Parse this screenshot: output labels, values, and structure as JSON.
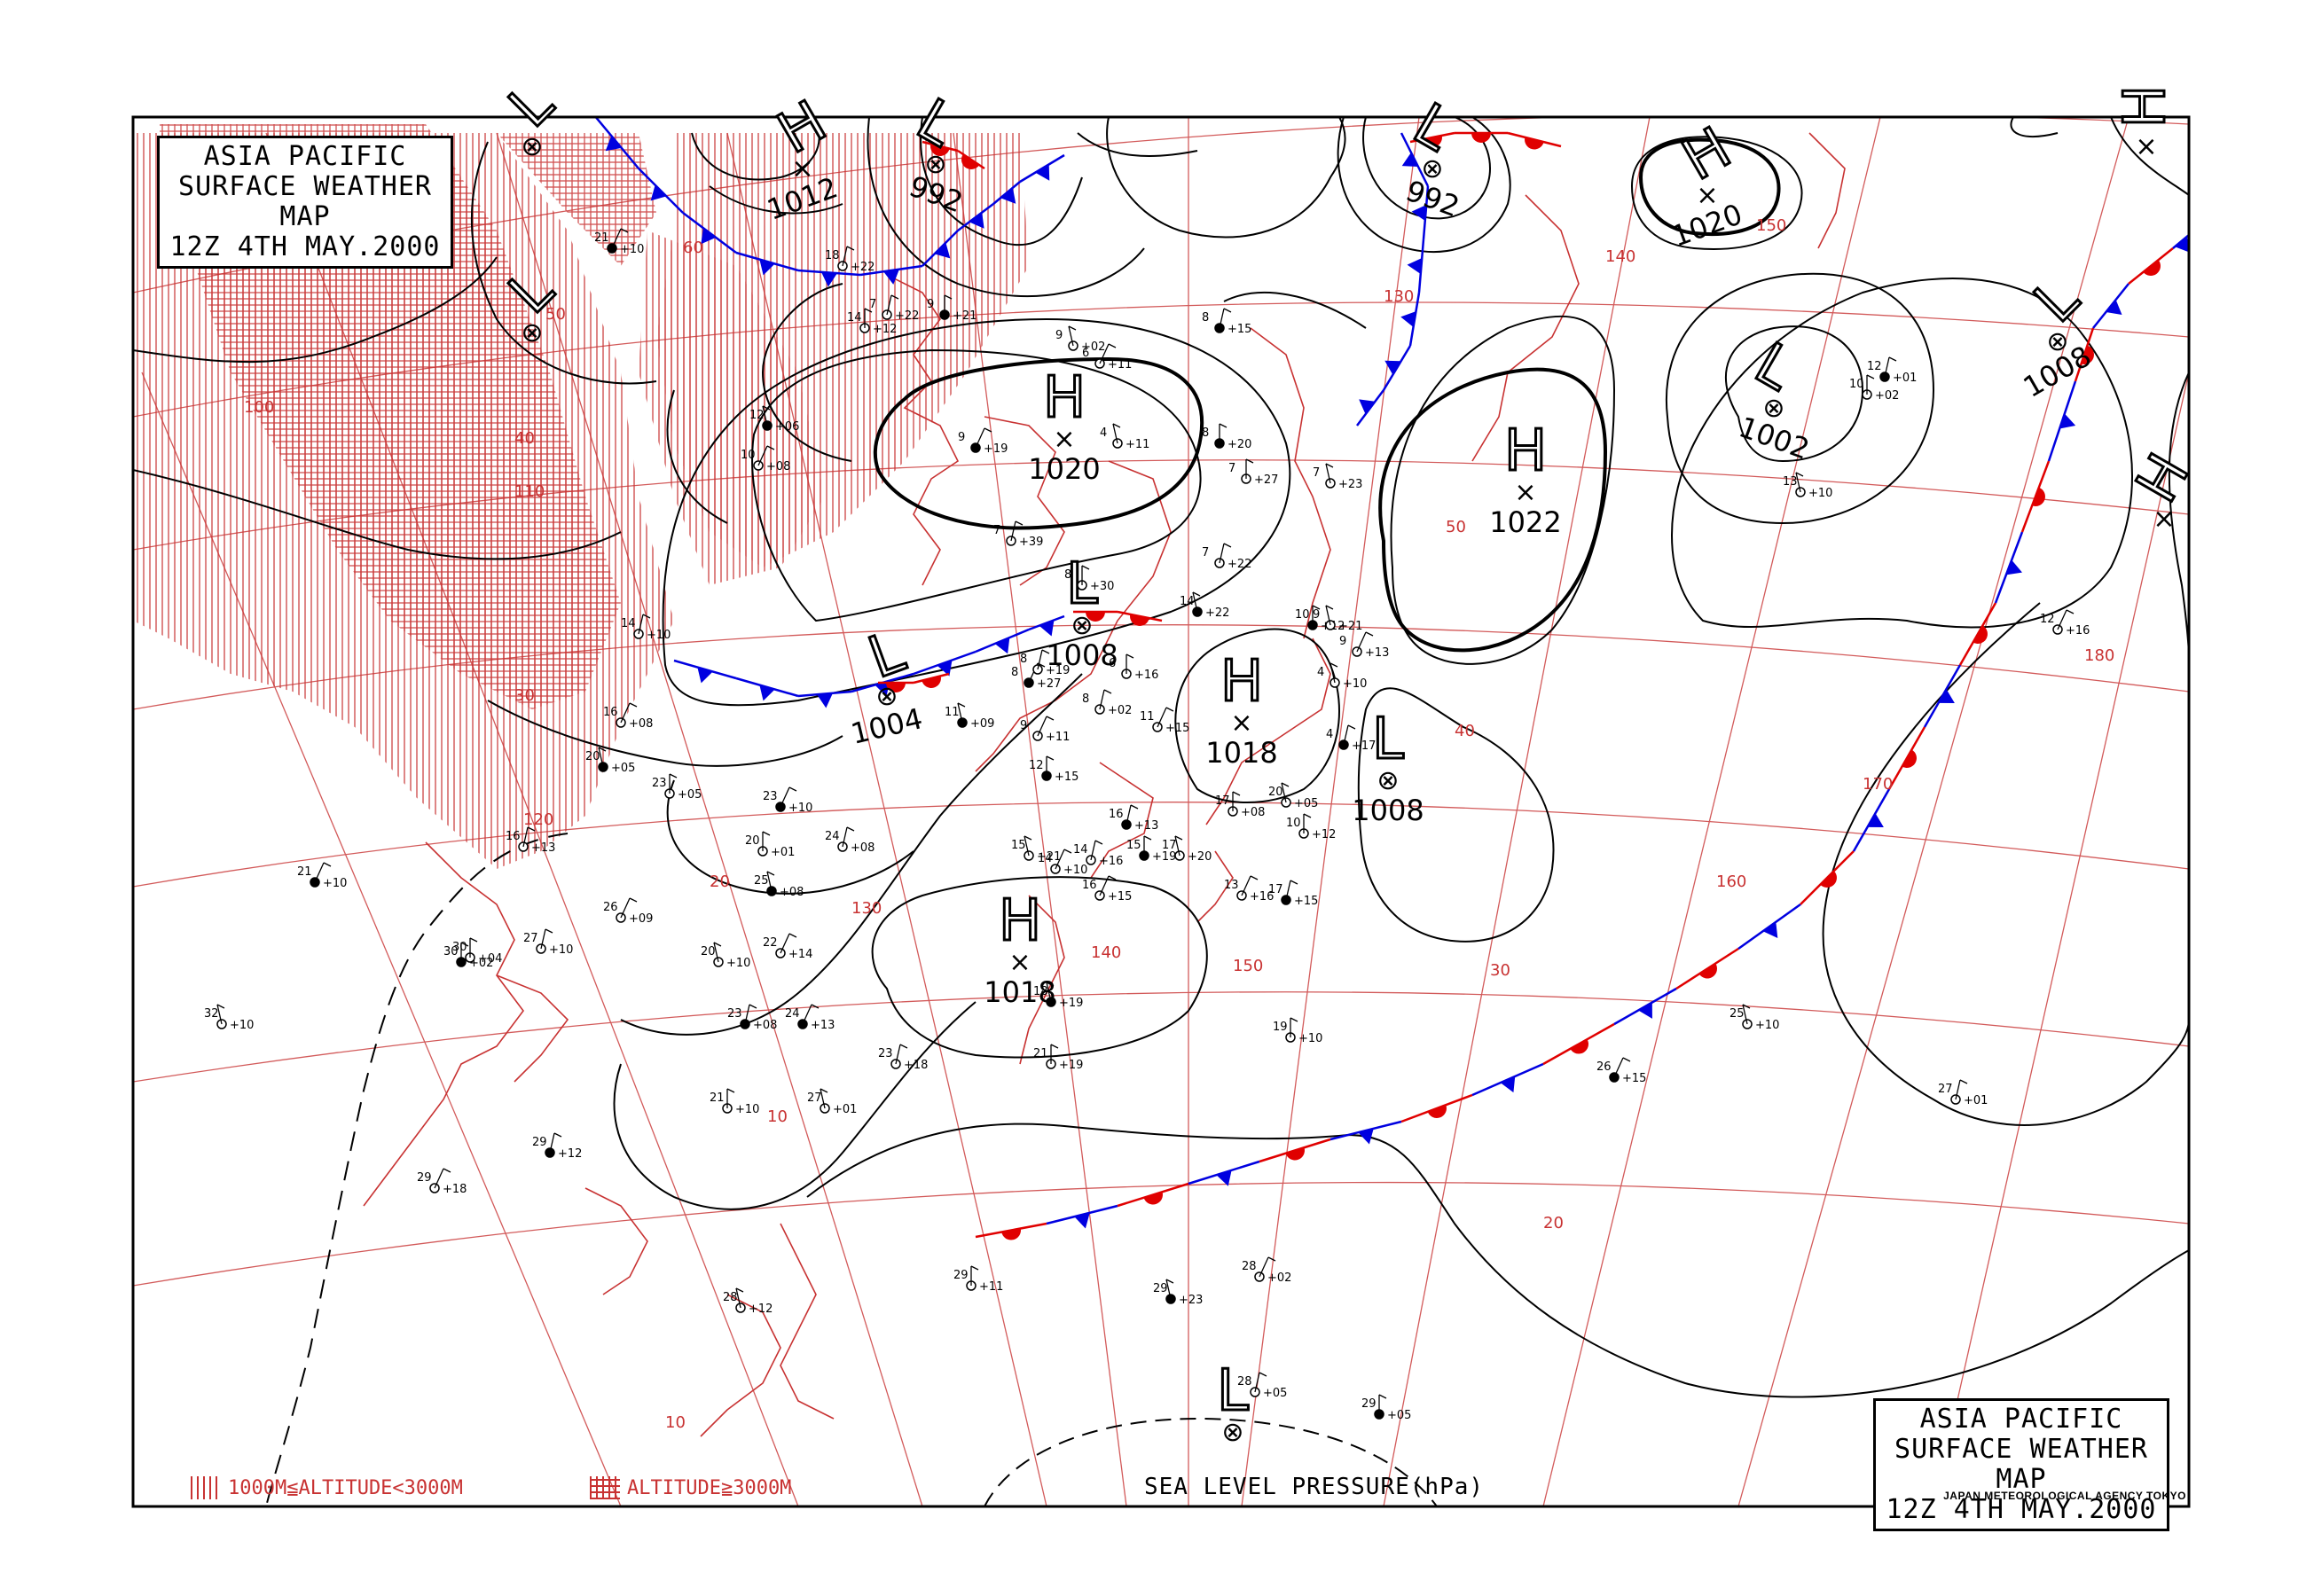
{
  "title": {
    "line1": "ASIA PACIFIC",
    "line2": "SURFACE WEATHER MAP",
    "line3": "12Z   4TH MAY.2000"
  },
  "legend": {
    "low_altitude": "1000M≦ALTITUDE<3000M",
    "high_altitude": "ALTITUDE≧3000M"
  },
  "pressure_label": "SEA LEVEL PRESSURE(hPa)",
  "agency": "JAPAN METEOROLOGICAL AGENCY TOKYO",
  "colors": {
    "isobar": "#000000",
    "grid": "#c83232",
    "warm_front": "#e00000",
    "cold_front": "#0000e0",
    "coast": "#c83232"
  },
  "pressure_systems": [
    {
      "type": "H",
      "value": "1012"
    },
    {
      "type": "L",
      "value": "992"
    },
    {
      "type": "L",
      "value": "992"
    },
    {
      "type": "H",
      "value": "1020"
    },
    {
      "type": "H",
      "value": "1020"
    },
    {
      "type": "L",
      "value": "1002"
    },
    {
      "type": "H",
      "value": "1022"
    },
    {
      "type": "L",
      "value": "1008"
    },
    {
      "type": "L",
      "value": "1004"
    },
    {
      "type": "H",
      "value": "1018"
    },
    {
      "type": "L",
      "value": "1008"
    },
    {
      "type": "L",
      "value": "1008"
    },
    {
      "type": "H",
      "value": "1018"
    },
    {
      "type": "L",
      "value": ""
    },
    {
      "type": "L",
      "value": ""
    },
    {
      "type": "H",
      "value": ""
    },
    {
      "type": "H",
      "value": ""
    },
    {
      "type": "L",
      "value": ""
    }
  ],
  "latitude_labels": [
    "60",
    "50",
    "40",
    "30",
    "20",
    "10",
    "50",
    "40",
    "30",
    "20",
    "10"
  ],
  "longitude_labels": [
    "100",
    "110",
    "120",
    "130",
    "140",
    "150",
    "160",
    "170",
    "180",
    "130",
    "140",
    "150"
  ],
  "stations": [
    {
      "temp": "21",
      "pressure": "+10"
    },
    {
      "temp": "18",
      "pressure": "+22"
    },
    {
      "temp": "14",
      "pressure": "+12"
    },
    {
      "temp": "12",
      "pressure": "+06"
    },
    {
      "temp": "10",
      "pressure": "+08"
    },
    {
      "temp": "7",
      "pressure": "+22"
    },
    {
      "temp": "9",
      "pressure": "+21"
    },
    {
      "temp": "9",
      "pressure": "+02"
    },
    {
      "temp": "6",
      "pressure": "+11"
    },
    {
      "temp": "8",
      "pressure": "+15"
    },
    {
      "temp": "7",
      "pressure": "+27"
    },
    {
      "temp": "4",
      "pressure": "+11"
    },
    {
      "temp": "9",
      "pressure": "+19"
    },
    {
      "temp": "7",
      "pressure": "+39"
    },
    {
      "temp": "8",
      "pressure": "+30"
    },
    {
      "temp": "14",
      "pressure": "+22"
    },
    {
      "temp": "11",
      "pressure": "+15"
    },
    {
      "temp": "7",
      "pressure": "+22"
    },
    {
      "temp": "10",
      "pressure": "+12"
    },
    {
      "temp": "7",
      "pressure": "+23"
    },
    {
      "temp": "9",
      "pressure": "+13"
    },
    {
      "temp": "4",
      "pressure": "+17"
    },
    {
      "temp": "10",
      "pressure": "+12"
    },
    {
      "temp": "4",
      "pressure": "+10"
    },
    {
      "temp": "8",
      "pressure": "+27"
    },
    {
      "temp": "8",
      "pressure": "+19"
    },
    {
      "temp": "6",
      "pressure": "+16"
    },
    {
      "temp": "11",
      "pressure": "+09"
    },
    {
      "temp": "9",
      "pressure": "+11"
    },
    {
      "temp": "8",
      "pressure": "+02"
    },
    {
      "temp": "12",
      "pressure": "+15"
    },
    {
      "temp": "15",
      "pressure": "+21"
    },
    {
      "temp": "14",
      "pressure": "+10"
    },
    {
      "temp": "16",
      "pressure": "+13"
    },
    {
      "temp": "17",
      "pressure": "+08"
    },
    {
      "temp": "20",
      "pressure": "+05"
    },
    {
      "temp": "23",
      "pressure": "+10"
    },
    {
      "temp": "24",
      "pressure": "+08"
    },
    {
      "temp": "20",
      "pressure": "+01"
    },
    {
      "temp": "25",
      "pressure": "+08"
    },
    {
      "temp": "26",
      "pressure": "+09"
    },
    {
      "temp": "27",
      "pressure": "+10"
    },
    {
      "temp": "30",
      "pressure": "+02"
    },
    {
      "temp": "20",
      "pressure": "+10"
    },
    {
      "temp": "22",
      "pressure": "+14"
    },
    {
      "temp": "23",
      "pressure": "+08"
    },
    {
      "temp": "21",
      "pressure": "+10"
    },
    {
      "temp": "27",
      "pressure": "+01"
    },
    {
      "temp": "24",
      "pressure": "+13"
    },
    {
      "temp": "23",
      "pressure": "+18"
    },
    {
      "temp": "21",
      "pressure": "+19"
    },
    {
      "temp": "18",
      "pressure": "+19"
    },
    {
      "temp": "16",
      "pressure": "+15"
    },
    {
      "temp": "14",
      "pressure": "+16"
    },
    {
      "temp": "15",
      "pressure": "+19"
    },
    {
      "temp": "17",
      "pressure": "+20"
    },
    {
      "temp": "13",
      "pressure": "+16"
    },
    {
      "temp": "17",
      "pressure": "+15"
    },
    {
      "temp": "19",
      "pressure": "+10"
    },
    {
      "temp": "25",
      "pressure": "+10"
    },
    {
      "temp": "26",
      "pressure": "+15"
    },
    {
      "temp": "27",
      "pressure": "+01"
    },
    {
      "temp": "29",
      "pressure": "+11"
    },
    {
      "temp": "29",
      "pressure": "+23"
    },
    {
      "temp": "28",
      "pressure": "+02"
    },
    {
      "temp": "28",
      "pressure": "+05"
    },
    {
      "temp": "29",
      "pressure": "+05"
    },
    {
      "temp": "28",
      "pressure": "+12"
    },
    {
      "temp": "29",
      "pressure": "+18"
    },
    {
      "temp": "29",
      "pressure": "+12"
    },
    {
      "temp": "30",
      "pressure": "+04"
    },
    {
      "temp": "32",
      "pressure": "+10"
    },
    {
      "temp": "21",
      "pressure": "+10"
    },
    {
      "temp": "16",
      "pressure": "+13"
    },
    {
      "temp": "23",
      "pressure": "+05"
    },
    {
      "temp": "20",
      "pressure": "+05"
    },
    {
      "temp": "16",
      "pressure": "+08"
    },
    {
      "temp": "14",
      "pressure": "+10"
    },
    {
      "temp": "8",
      "pressure": "+20"
    },
    {
      "temp": "9",
      "pressure": "+21"
    },
    {
      "temp": "12",
      "pressure": "+16"
    },
    {
      "temp": "12",
      "pressure": "+01"
    },
    {
      "temp": "10",
      "pressure": "+02"
    },
    {
      "temp": "13",
      "pressure": "+10"
    }
  ]
}
